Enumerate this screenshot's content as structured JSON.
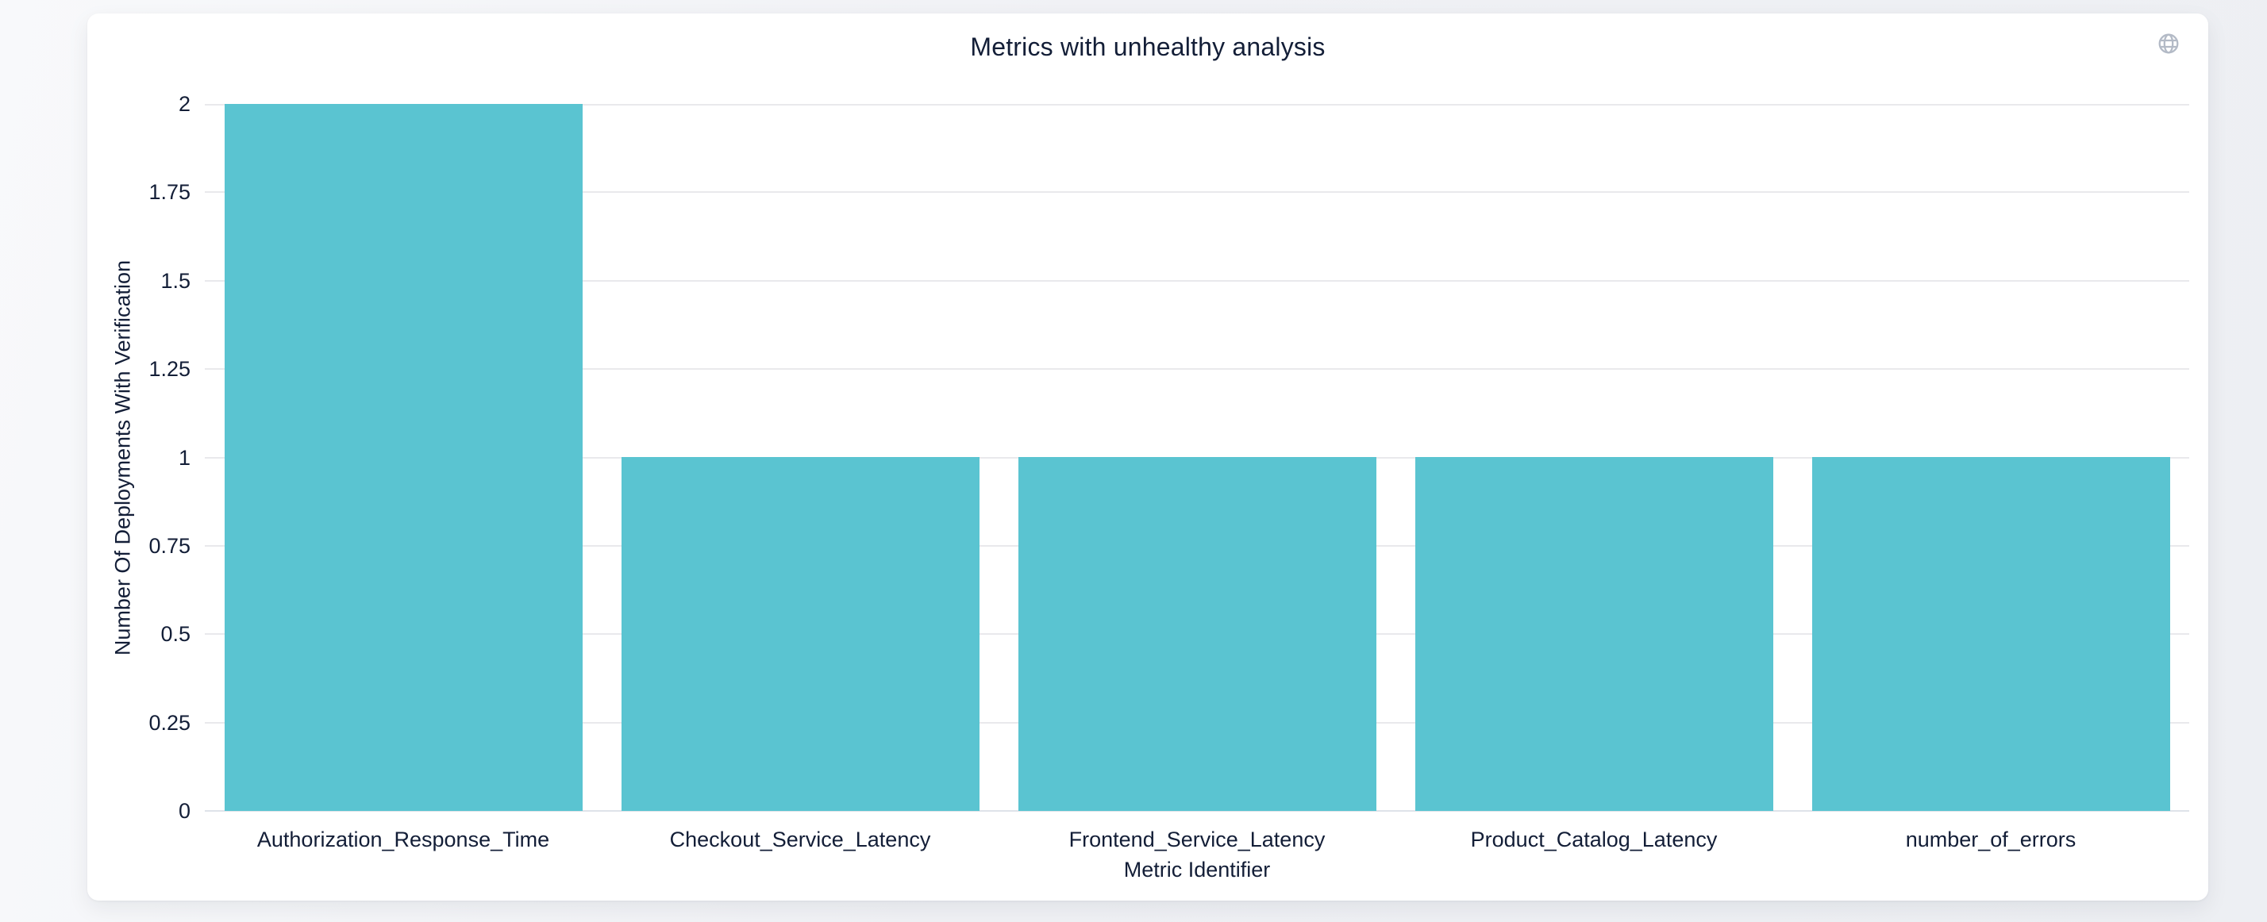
{
  "page": {
    "background_color": "#f0f1f5"
  },
  "card": {
    "background_color": "#ffffff"
  },
  "header": {
    "toolbar_icon": "globe-icon",
    "toolbar_icon_color": "#b3bac6"
  },
  "chart_data": {
    "type": "bar",
    "title": "Metrics with unhealthy analysis",
    "categories": [
      "Authorization_Response_Time",
      "Checkout_Service_Latency",
      "Frontend_Service_Latency",
      "Product_Catalog_Latency",
      "number_of_errors"
    ],
    "values": [
      2,
      1,
      1,
      1,
      1
    ],
    "xlabel": "Metric Identifier",
    "ylabel": "Number Of Deployments With Verification",
    "ylim": [
      0,
      2
    ],
    "yticks": [
      0,
      0.25,
      0.5,
      0.75,
      1,
      1.25,
      1.5,
      1.75,
      2
    ],
    "ytick_labels": [
      "0",
      "0.25",
      "0.5",
      "0.75",
      "1",
      "1.25",
      "1.5",
      "1.75",
      "2"
    ],
    "grid": true,
    "legend": "none",
    "bar_color": "#5ac4d1",
    "grid_color": "#e9e9ec",
    "baseline_color": "#dfe3e9",
    "text_color": "#131e37"
  }
}
